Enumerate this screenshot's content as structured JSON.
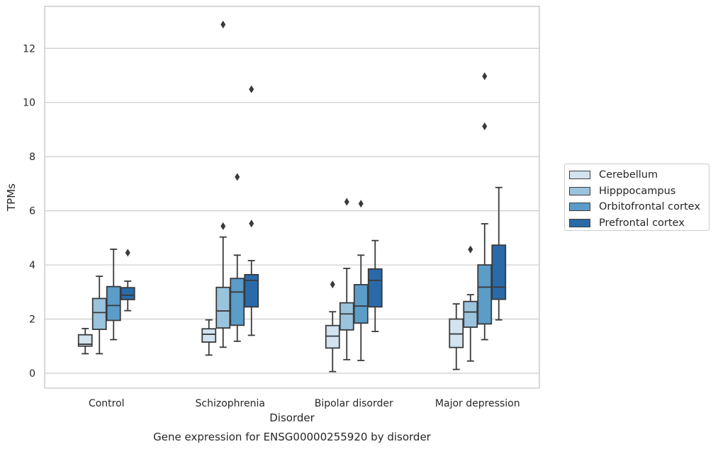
{
  "chart_data": {
    "type": "box",
    "title": "",
    "caption": "Gene expression for ENSG00000255920 by disorder",
    "xlabel": "Disorder",
    "ylabel": "TPMs",
    "ylim": [
      -0.55,
      13.55
    ],
    "yticks": [
      0,
      2,
      4,
      6,
      8,
      10,
      12
    ],
    "grid": "horizontal",
    "legend_position": "right",
    "categories": [
      "Control",
      "Schizophrenia",
      "Bipolar disorder",
      "Major depression"
    ],
    "series": [
      {
        "name": "Cerebellum",
        "color": "#d3e3f0",
        "boxes": [
          {
            "whisker_low": 0.72,
            "q1": 1.0,
            "median": 1.07,
            "q3": 1.42,
            "whisker_high": 1.65,
            "outliers": []
          },
          {
            "whisker_low": 0.67,
            "q1": 1.15,
            "median": 1.44,
            "q3": 1.64,
            "whisker_high": 1.97,
            "outliers": []
          },
          {
            "whisker_low": 0.06,
            "q1": 0.93,
            "median": 1.37,
            "q3": 1.76,
            "whisker_high": 2.27,
            "outliers": [
              3.28
            ]
          },
          {
            "whisker_low": 0.14,
            "q1": 0.95,
            "median": 1.45,
            "q3": 2.0,
            "whisker_high": 2.56,
            "outliers": []
          }
        ]
      },
      {
        "name": "Hipppocampus",
        "color": "#9ac3de",
        "boxes": [
          {
            "whisker_low": 0.72,
            "q1": 1.62,
            "median": 2.24,
            "q3": 2.76,
            "whisker_high": 3.58,
            "outliers": []
          },
          {
            "whisker_low": 0.96,
            "q1": 1.67,
            "median": 2.3,
            "q3": 3.17,
            "whisker_high": 5.03,
            "outliers": [
              5.43,
              12.88
            ]
          },
          {
            "whisker_low": 0.5,
            "q1": 1.6,
            "median": 2.19,
            "q3": 2.6,
            "whisker_high": 3.87,
            "outliers": [
              6.33
            ]
          },
          {
            "whisker_low": 0.45,
            "q1": 1.7,
            "median": 2.26,
            "q3": 2.65,
            "whisker_high": 2.9,
            "outliers": [
              4.57
            ]
          }
        ]
      },
      {
        "name": "Orbitofrontal cortex",
        "color": "#5b9cc9",
        "boxes": [
          {
            "whisker_low": 1.24,
            "q1": 1.95,
            "median": 2.5,
            "q3": 3.2,
            "whisker_high": 4.58,
            "outliers": []
          },
          {
            "whisker_low": 1.18,
            "q1": 1.77,
            "median": 3.0,
            "q3": 3.5,
            "whisker_high": 4.36,
            "outliers": [
              7.25
            ]
          },
          {
            "whisker_low": 0.47,
            "q1": 1.85,
            "median": 2.48,
            "q3": 3.27,
            "whisker_high": 4.36,
            "outliers": [
              6.26
            ]
          },
          {
            "whisker_low": 1.24,
            "q1": 1.82,
            "median": 3.18,
            "q3": 4.0,
            "whisker_high": 5.52,
            "outliers": [
              9.12,
              10.97
            ]
          }
        ]
      },
      {
        "name": "Prefrontal cortex",
        "color": "#2a6aa8",
        "boxes": [
          {
            "whisker_low": 2.31,
            "q1": 2.72,
            "median": 2.88,
            "q3": 3.16,
            "whisker_high": 3.4,
            "outliers": [
              4.45
            ]
          },
          {
            "whisker_low": 1.4,
            "q1": 2.45,
            "median": 3.43,
            "q3": 3.64,
            "whisker_high": 4.16,
            "outliers": [
              5.53,
              10.49
            ]
          },
          {
            "whisker_low": 1.54,
            "q1": 2.45,
            "median": 3.43,
            "q3": 3.85,
            "whisker_high": 4.9,
            "outliers": []
          },
          {
            "whisker_low": 1.97,
            "q1": 2.73,
            "median": 3.18,
            "q3": 4.73,
            "whisker_high": 6.86,
            "outliers": []
          }
        ]
      }
    ]
  }
}
